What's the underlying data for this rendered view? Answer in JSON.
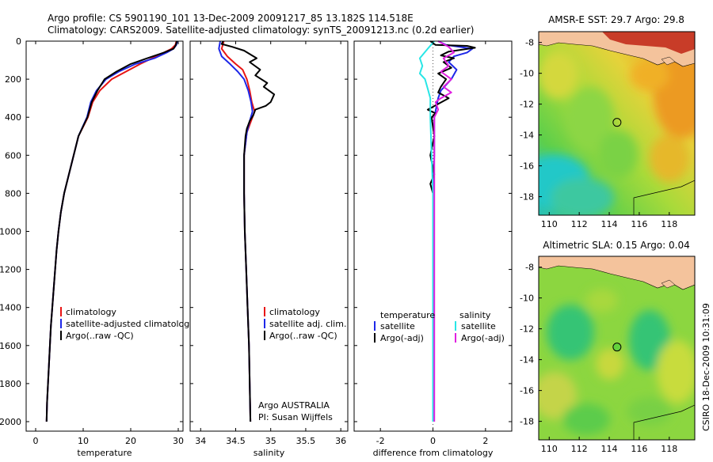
{
  "titles": {
    "line1": "Argo profile: CS 5901190_101 13-Dec-2009 20091217_85 13.182S 114.518E",
    "line2": "Climatology: CARS2009. Satellite-adjusted climatology: synTS_20091213.nc (0.2d earlier)"
  },
  "colors": {
    "climatology": "#e81414",
    "satellite": "#1e28e8",
    "argo": "#000000",
    "salinity_satellite": "#28e6e6",
    "salinity_argo": "#e020e0",
    "sea_warm": "#f0a020",
    "land": "#f4c39c",
    "land_dark": "#c83c28",
    "sea_green": "#64d23c",
    "sea_cyan": "#1ec8c8"
  },
  "chart_data": [
    {
      "type": "line",
      "xlabel": "temperature",
      "ylabel": "",
      "xlim": [
        -2,
        31
      ],
      "ylim": [
        2050,
        0
      ],
      "xticks": [
        "0",
        "10",
        "20",
        "30"
      ],
      "yticks": [
        "0",
        "200",
        "400",
        "600",
        "800",
        "1000",
        "1200",
        "1400",
        "1600",
        "1800",
        "2000"
      ],
      "legend": [
        "climatology",
        "satellite-adjusted climatolog",
        "Argo(..raw -QC)"
      ],
      "series": [
        {
          "name": "climatology",
          "color": "climatology",
          "points": [
            [
              29.6,
              0
            ],
            [
              29.4,
              20
            ],
            [
              28.6,
              40
            ],
            [
              27.0,
              60
            ],
            [
              24.5,
              90
            ],
            [
              22.0,
              120
            ],
            [
              19.0,
              160
            ],
            [
              16.0,
              200
            ],
            [
              13.5,
              260
            ],
            [
              12.0,
              320
            ],
            [
              11.0,
              400
            ],
            [
              9.0,
              500
            ],
            [
              8.0,
              600
            ],
            [
              7.0,
              700
            ],
            [
              6.0,
              800
            ],
            [
              5.3,
              900
            ],
            [
              4.8,
              1000
            ],
            [
              4.4,
              1100
            ],
            [
              4.1,
              1200
            ],
            [
              3.8,
              1300
            ],
            [
              3.5,
              1400
            ],
            [
              3.2,
              1500
            ],
            [
              3.0,
              1600
            ],
            [
              2.8,
              1700
            ],
            [
              2.6,
              1800
            ],
            [
              2.4,
              1900
            ],
            [
              2.3,
              2000
            ]
          ]
        },
        {
          "name": "satellite-adjusted climatolog",
          "color": "satellite",
          "points": [
            [
              29.8,
              0
            ],
            [
              29.6,
              20
            ],
            [
              29.0,
              40
            ],
            [
              27.6,
              60
            ],
            [
              25.0,
              90
            ],
            [
              21.0,
              120
            ],
            [
              17.5,
              160
            ],
            [
              14.8,
              200
            ],
            [
              12.8,
              260
            ],
            [
              11.6,
              320
            ],
            [
              10.8,
              400
            ],
            [
              9.0,
              500
            ],
            [
              8.0,
              600
            ],
            [
              7.0,
              700
            ],
            [
              6.0,
              800
            ],
            [
              5.3,
              900
            ],
            [
              4.8,
              1000
            ],
            [
              4.4,
              1100
            ],
            [
              4.1,
              1200
            ],
            [
              3.8,
              1300
            ],
            [
              3.5,
              1400
            ],
            [
              3.2,
              1500
            ],
            [
              3.0,
              1600
            ],
            [
              2.8,
              1700
            ],
            [
              2.6,
              1800
            ],
            [
              2.4,
              1900
            ],
            [
              2.3,
              2000
            ]
          ]
        },
        {
          "name": "Argo(..raw -QC)",
          "color": "argo",
          "points": [
            [
              29.7,
              0
            ],
            [
              29.5,
              20
            ],
            [
              29.0,
              40
            ],
            [
              27.0,
              60
            ],
            [
              23.5,
              90
            ],
            [
              20.0,
              120
            ],
            [
              17.0,
              160
            ],
            [
              14.5,
              200
            ],
            [
              13.0,
              260
            ],
            [
              11.8,
              320
            ],
            [
              10.9,
              400
            ],
            [
              9.0,
              500
            ],
            [
              8.0,
              600
            ],
            [
              7.0,
              700
            ],
            [
              6.0,
              800
            ],
            [
              5.3,
              900
            ],
            [
              4.8,
              1000
            ],
            [
              4.4,
              1100
            ],
            [
              4.1,
              1200
            ],
            [
              3.8,
              1300
            ],
            [
              3.5,
              1400
            ],
            [
              3.2,
              1500
            ],
            [
              3.0,
              1600
            ],
            [
              2.8,
              1700
            ],
            [
              2.6,
              1800
            ],
            [
              2.4,
              1900
            ],
            [
              2.3,
              2000
            ]
          ]
        }
      ]
    },
    {
      "type": "line",
      "xlabel": "salinity",
      "ylabel": "",
      "xlim": [
        33.85,
        36.1
      ],
      "ylim": [
        2050,
        0
      ],
      "xticks": [
        "34",
        "34.5",
        "35",
        "35.5",
        "36"
      ],
      "legend": [
        "climatology",
        "satellite adj. clim.",
        "Argo(..raw -QC)"
      ],
      "annotation": [
        "Argo AUSTRALIA",
        "PI: Susan Wijffels"
      ],
      "series": [
        {
          "name": "climatology",
          "color": "climatology",
          "points": [
            [
              34.33,
              0
            ],
            [
              34.3,
              40
            ],
            [
              34.38,
              80
            ],
            [
              34.5,
              120
            ],
            [
              34.6,
              150
            ],
            [
              34.66,
              200
            ],
            [
              34.7,
              260
            ],
            [
              34.73,
              320
            ],
            [
              34.77,
              370
            ],
            [
              34.72,
              420
            ],
            [
              34.66,
              480
            ],
            [
              34.62,
              600
            ],
            [
              34.62,
              800
            ],
            [
              34.63,
              1000
            ],
            [
              34.65,
              1200
            ],
            [
              34.67,
              1400
            ],
            [
              34.69,
              1600
            ],
            [
              34.7,
              1800
            ],
            [
              34.71,
              2000
            ]
          ]
        },
        {
          "name": "satellite adj. clim.",
          "color": "satellite",
          "points": [
            [
              34.28,
              0
            ],
            [
              34.26,
              40
            ],
            [
              34.3,
              80
            ],
            [
              34.42,
              120
            ],
            [
              34.53,
              160
            ],
            [
              34.62,
              200
            ],
            [
              34.68,
              260
            ],
            [
              34.72,
              320
            ],
            [
              34.74,
              370
            ],
            [
              34.7,
              420
            ],
            [
              34.66,
              480
            ],
            [
              34.62,
              600
            ],
            [
              34.62,
              800
            ],
            [
              34.63,
              1000
            ],
            [
              34.65,
              1200
            ],
            [
              34.67,
              1400
            ],
            [
              34.69,
              1600
            ],
            [
              34.7,
              1800
            ],
            [
              34.71,
              2000
            ]
          ]
        },
        {
          "name": "Argo(..raw -QC)",
          "color": "argo",
          "points": [
            [
              34.32,
              0
            ],
            [
              34.3,
              15
            ],
            [
              34.45,
              30
            ],
            [
              34.62,
              50
            ],
            [
              34.8,
              90
            ],
            [
              34.7,
              110
            ],
            [
              34.85,
              150
            ],
            [
              34.78,
              180
            ],
            [
              34.95,
              220
            ],
            [
              34.9,
              240
            ],
            [
              35.05,
              280
            ],
            [
              35.0,
              320
            ],
            [
              34.93,
              340
            ],
            [
              34.78,
              360
            ],
            [
              34.75,
              390
            ],
            [
              34.7,
              420
            ],
            [
              34.66,
              460
            ],
            [
              34.64,
              500
            ],
            [
              34.62,
              600
            ],
            [
              34.62,
              800
            ],
            [
              34.63,
              1000
            ],
            [
              34.65,
              1200
            ],
            [
              34.67,
              1400
            ],
            [
              34.69,
              1600
            ],
            [
              34.7,
              1800
            ],
            [
              34.71,
              2000
            ]
          ]
        }
      ]
    },
    {
      "type": "line",
      "xlabel": "difference from climatology",
      "ylabel": "",
      "xlim": [
        -3,
        3
      ],
      "ylim": [
        2050,
        0
      ],
      "xticks": [
        "-2",
        "0",
        "2"
      ],
      "legend_left_title": "temperature",
      "legend_left": [
        "satellite",
        "Argo(-adj)"
      ],
      "legend_right_title": "salinity",
      "legend_right": [
        "satellite",
        "Argo(-adj)"
      ],
      "series": [
        {
          "name": "temperature satellite",
          "color": "satellite",
          "points": [
            [
              0.2,
              0
            ],
            [
              0.5,
              20
            ],
            [
              1.5,
              40
            ],
            [
              1.3,
              60
            ],
            [
              0.8,
              80
            ],
            [
              0.6,
              110
            ],
            [
              0.9,
              150
            ],
            [
              0.7,
              200
            ],
            [
              0.3,
              260
            ],
            [
              0.2,
              300
            ],
            [
              0.05,
              400
            ],
            [
              0.05,
              600
            ],
            [
              0,
              800
            ],
            [
              0,
              1200
            ],
            [
              0,
              1600
            ],
            [
              0,
              2000
            ]
          ]
        },
        {
          "name": "temperature Argo(-adj)",
          "color": "argo",
          "points": [
            [
              -0.1,
              0
            ],
            [
              0.1,
              20
            ],
            [
              1.3,
              25
            ],
            [
              1.6,
              35
            ],
            [
              0.6,
              55
            ],
            [
              0.3,
              75
            ],
            [
              0.8,
              90
            ],
            [
              0.4,
              110
            ],
            [
              0.7,
              140
            ],
            [
              0.2,
              170
            ],
            [
              0.5,
              200
            ],
            [
              0.3,
              240
            ],
            [
              0.2,
              270
            ],
            [
              0.6,
              300
            ],
            [
              0.2,
              330
            ],
            [
              -0.2,
              360
            ],
            [
              0.1,
              380
            ],
            [
              -0.05,
              400
            ],
            [
              0.05,
              500
            ],
            [
              -0.1,
              600
            ],
            [
              0.05,
              700
            ],
            [
              -0.1,
              750
            ],
            [
              0,
              800
            ],
            [
              0,
              1200
            ],
            [
              0,
              1600
            ],
            [
              0,
              1950
            ],
            [
              0,
              2000
            ]
          ]
        },
        {
          "name": "salinity satellite",
          "color": "salinity_satellite",
          "points": [
            [
              0.05,
              0
            ],
            [
              -0.2,
              40
            ],
            [
              -0.5,
              90
            ],
            [
              -0.4,
              130
            ],
            [
              -0.5,
              170
            ],
            [
              -0.3,
              200
            ],
            [
              -0.2,
              250
            ],
            [
              -0.1,
              300
            ],
            [
              -0.1,
              400
            ],
            [
              -0.05,
              600
            ],
            [
              0,
              800
            ],
            [
              0,
              1200
            ],
            [
              0,
              1600
            ],
            [
              0,
              2000
            ]
          ]
        },
        {
          "name": "salinity Argo(-adj)",
          "color": "salinity_argo",
          "points": [
            [
              0.2,
              0
            ],
            [
              0.6,
              30
            ],
            [
              0.8,
              60
            ],
            [
              0.4,
              90
            ],
            [
              0.6,
              130
            ],
            [
              0.3,
              160
            ],
            [
              0.7,
              200
            ],
            [
              0.4,
              240
            ],
            [
              0.7,
              270
            ],
            [
              0.3,
              300
            ],
            [
              0.1,
              320
            ],
            [
              0.2,
              360
            ],
            [
              0.05,
              400
            ],
            [
              0.05,
              600
            ],
            [
              0.05,
              800
            ],
            [
              0.05,
              1200
            ],
            [
              0.05,
              1600
            ],
            [
              0.05,
              2000
            ]
          ]
        }
      ]
    },
    {
      "type": "heatmap",
      "title": "AMSR-E SST: 29.7  Argo: 29.8",
      "xlim": [
        109.3,
        119.7
      ],
      "ylim": [
        -19.2,
        -7.3
      ],
      "xticks": [
        "110",
        "112",
        "114",
        "116",
        "118"
      ],
      "yticks": [
        "-8",
        "-10",
        "-12",
        "-14",
        "-16",
        "-18"
      ],
      "marker": {
        "lon": 114.518,
        "lat": -13.182,
        "color": "sea_green"
      }
    },
    {
      "type": "heatmap",
      "title": "Altimetric SLA: 0.15  Argo: 0.04",
      "xlim": [
        109.3,
        119.7
      ],
      "ylim": [
        -19.2,
        -7.3
      ],
      "xticks": [
        "110",
        "112",
        "114",
        "116",
        "118"
      ],
      "yticks": [
        "-8",
        "-10",
        "-12",
        "-14",
        "-16",
        "-18"
      ],
      "marker": {
        "lon": 114.518,
        "lat": -13.182,
        "color": "sea_green"
      }
    }
  ],
  "side_label": "CSIRO 18-Dec-2009 10:31:09"
}
